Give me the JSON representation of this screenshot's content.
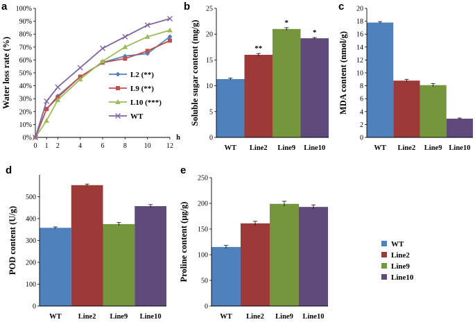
{
  "figure": {
    "legend": {
      "items": [
        {
          "label": "WT",
          "color": "#4f81bd"
        },
        {
          "label": "Line2",
          "color": "#9b3a38"
        },
        {
          "label": "Line9",
          "color": "#75963c"
        },
        {
          "label": "Line10",
          "color": "#604a7b"
        }
      ]
    }
  },
  "chart_data": [
    {
      "panel": "a",
      "type": "line",
      "title": "",
      "xlabel": "h",
      "ylabel": "Water loss rate (%)",
      "x": [
        0,
        1,
        2,
        4,
        6,
        8,
        10,
        12
      ],
      "xlim": [
        0,
        12
      ],
      "ylim": [
        0,
        100
      ],
      "y_ticks": [
        "0%",
        "10%",
        "20%",
        "30%",
        "40%",
        "50%",
        "60%",
        "70%",
        "80%",
        "90%",
        "100%"
      ],
      "x_ticks": [
        "0",
        "1",
        "2",
        "4",
        "6",
        "8",
        "10",
        "12"
      ],
      "legend_position": "right",
      "series": [
        {
          "name": "L2 (**)",
          "color": "#4f81bd",
          "marker": "diamond",
          "values": [
            0,
            22,
            32,
            47,
            58,
            63,
            65,
            78
          ]
        },
        {
          "name": "L9 (**)",
          "color": "#c0504d",
          "marker": "square",
          "values": [
            0,
            22,
            31,
            47,
            58,
            61,
            67,
            75
          ]
        },
        {
          "name": "L10 (***)",
          "color": "#9bbb59",
          "marker": "triangle",
          "values": [
            0,
            13,
            29,
            45,
            59,
            70,
            78,
            83
          ]
        },
        {
          "name": "WT",
          "color": "#8064a2",
          "marker": "x",
          "values": [
            0,
            28,
            39,
            54,
            69,
            78,
            87,
            92
          ]
        }
      ]
    },
    {
      "panel": "b",
      "type": "bar",
      "ylabel": "Soluble sugar content (mg/g)",
      "categories": [
        "WT",
        "Line2",
        "Line9",
        "Line10"
      ],
      "values": [
        11.3,
        16.0,
        21.0,
        19.2
      ],
      "errors": [
        0.2,
        0.25,
        0.25,
        0.15
      ],
      "significance": [
        "",
        "**",
        "*",
        "*"
      ],
      "ylim": [
        0,
        25
      ],
      "y_ticks": [
        "0",
        "5",
        "10",
        "15",
        "20",
        "25"
      ]
    },
    {
      "panel": "c",
      "type": "bar",
      "ylabel": "MDA content (nmol/g)",
      "categories": [
        "WT",
        "Line2",
        "Line9",
        "Line10"
      ],
      "values": [
        17.8,
        8.8,
        8.1,
        2.9
      ],
      "errors": [
        0.15,
        0.2,
        0.25,
        0.1
      ],
      "significance": [
        "",
        "",
        "",
        ""
      ],
      "ylim": [
        0,
        20
      ],
      "y_ticks": [
        "0",
        "2",
        "4",
        "6",
        "8",
        "10",
        "12",
        "14",
        "16",
        "18",
        "20"
      ]
    },
    {
      "panel": "d",
      "type": "bar",
      "ylabel": "POD content (U/g)",
      "categories": [
        "WT",
        "Line2",
        "Line9",
        "Line10"
      ],
      "values": [
        358,
        553,
        375,
        457
      ],
      "errors": [
        4,
        5,
        7,
        7
      ],
      "significance": [
        "",
        "",
        "",
        ""
      ],
      "ylim": [
        0,
        600
      ],
      "y_ticks": [
        "0",
        "100",
        "200",
        "300",
        "400",
        "500"
      ]
    },
    {
      "panel": "e",
      "type": "bar",
      "ylabel": "Proline content (μg/g)",
      "categories": [
        "WT",
        "Line2",
        "Line9",
        "Line10"
      ],
      "values": [
        115,
        161,
        199,
        193
      ],
      "errors": [
        3,
        4,
        5,
        4
      ],
      "significance": [
        "",
        "",
        "",
        ""
      ],
      "ylim": [
        0,
        250
      ],
      "y_ticks": [
        "0",
        "50",
        "100",
        "150",
        "200",
        "250"
      ]
    }
  ]
}
